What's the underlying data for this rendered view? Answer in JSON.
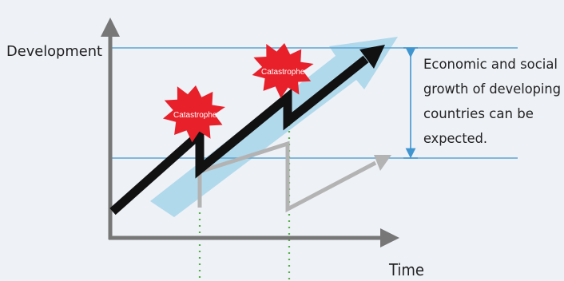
{
  "axes": {
    "y_label": "Development",
    "x_label": "Time"
  },
  "annotation": {
    "lines": [
      "Economic and social",
      "growth of developing",
      "countries can be",
      "expected."
    ]
  },
  "events": [
    {
      "label": "Catastrophe"
    },
    {
      "label": "Catastrophe"
    }
  ],
  "colors": {
    "background": "#eef1f6",
    "axis": "#777777",
    "reference_line": "#5aa6d4",
    "main_trend": "#111111",
    "alt_trend": "#b3b3b3",
    "potential_band": "#a9d6ea",
    "burst": "#e8202a",
    "event_marker": "#55b04a",
    "bracket": "#3f95d0"
  }
}
